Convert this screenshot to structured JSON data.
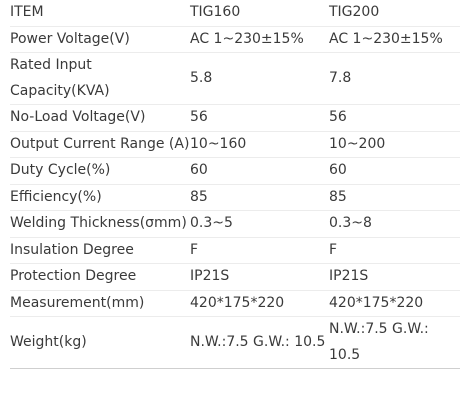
{
  "rows": [
    {
      "label": "ITEM",
      "a": "TIG160",
      "b": "TIG200"
    },
    {
      "label": "Power Voltage(V)",
      "a": "AC 1~230±15%",
      "b": "AC 1~230±15%"
    },
    {
      "label": "Rated Input Capacity(KVA)",
      "a": "5.8",
      "b": "7.8"
    },
    {
      "label": "No-Load Voltage(V)",
      "a": "56",
      "b": "56"
    },
    {
      "label": "Output Current Range (A)",
      "a": "10~160",
      "b": "10~200"
    },
    {
      "label": "Duty Cycle(%)",
      "a": "60",
      "b": "60"
    },
    {
      "label": "Efficiency(%)",
      "a": "85",
      "b": "85"
    },
    {
      "label": "Welding Thickness(σmm)",
      "a": "0.3~5",
      "b": "0.3~8"
    },
    {
      "label": "Insulation Degree",
      "a": "F",
      "b": "F"
    },
    {
      "label": "Protection Degree",
      "a": "IP21S",
      "b": "IP21S"
    },
    {
      "label": "Measurement(mm)",
      "a": "420*175*220",
      "b": "420*175*220"
    },
    {
      "label": "Weight(kg)",
      "a": "N.W.:7.5 G.W.: 10.5",
      "b": "N.W.:7.5 G.W.: 10.5"
    }
  ]
}
